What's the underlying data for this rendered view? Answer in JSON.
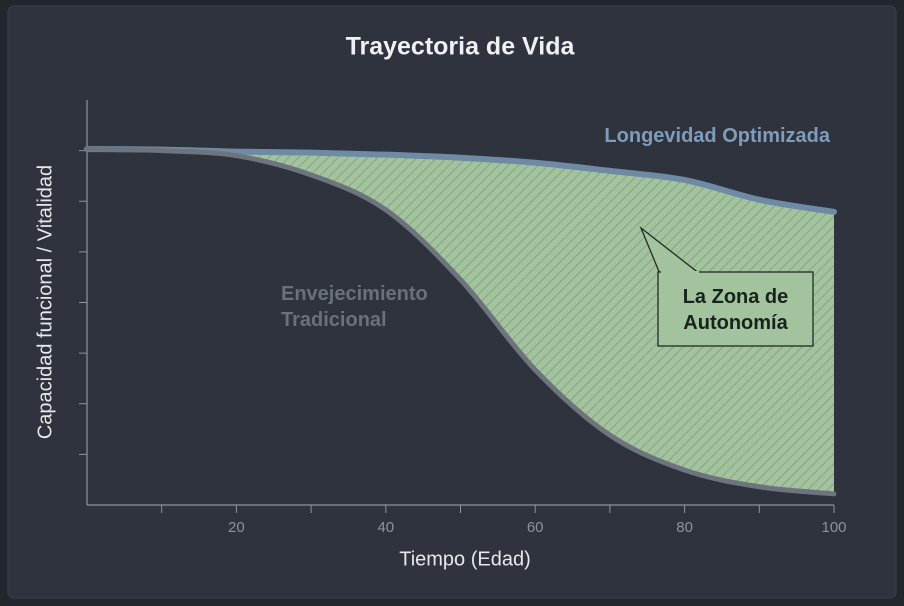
{
  "chart_data": {
    "type": "area-between",
    "title": "Trayectoria de Vida",
    "x_label": "Tiempo (Edad)",
    "y_label": "Capacidad funcional / Vitalidad",
    "x": [
      0,
      10,
      20,
      30,
      40,
      50,
      60,
      70,
      80,
      90,
      100
    ],
    "series": [
      {
        "name": "Longevidad Optimizada",
        "color": "#6f8aa5",
        "label_color": "#7f9dba",
        "values": [
          7.03,
          7.02,
          6.98,
          6.96,
          6.92,
          6.86,
          6.76,
          6.6,
          6.42,
          6.03,
          5.79
        ]
      },
      {
        "name": "Envejecimiento Tradicional",
        "color": "#6e747d",
        "label_color": "#6b717a",
        "values": [
          7.03,
          7.0,
          6.9,
          6.52,
          5.83,
          4.45,
          2.67,
          1.38,
          0.69,
          0.36,
          0.22
        ]
      }
    ],
    "zone_label": "La Zona de Autonomía",
    "zone_color": "#a3c39e",
    "xlim": [
      0,
      100
    ],
    "xticks": [
      20,
      40,
      60,
      80,
      100
    ],
    "xminor_ticks": [
      10,
      30,
      50,
      70,
      90
    ],
    "ylim": [
      0,
      8
    ],
    "yticks": [
      1,
      2,
      3,
      4,
      5,
      6,
      7
    ]
  }
}
